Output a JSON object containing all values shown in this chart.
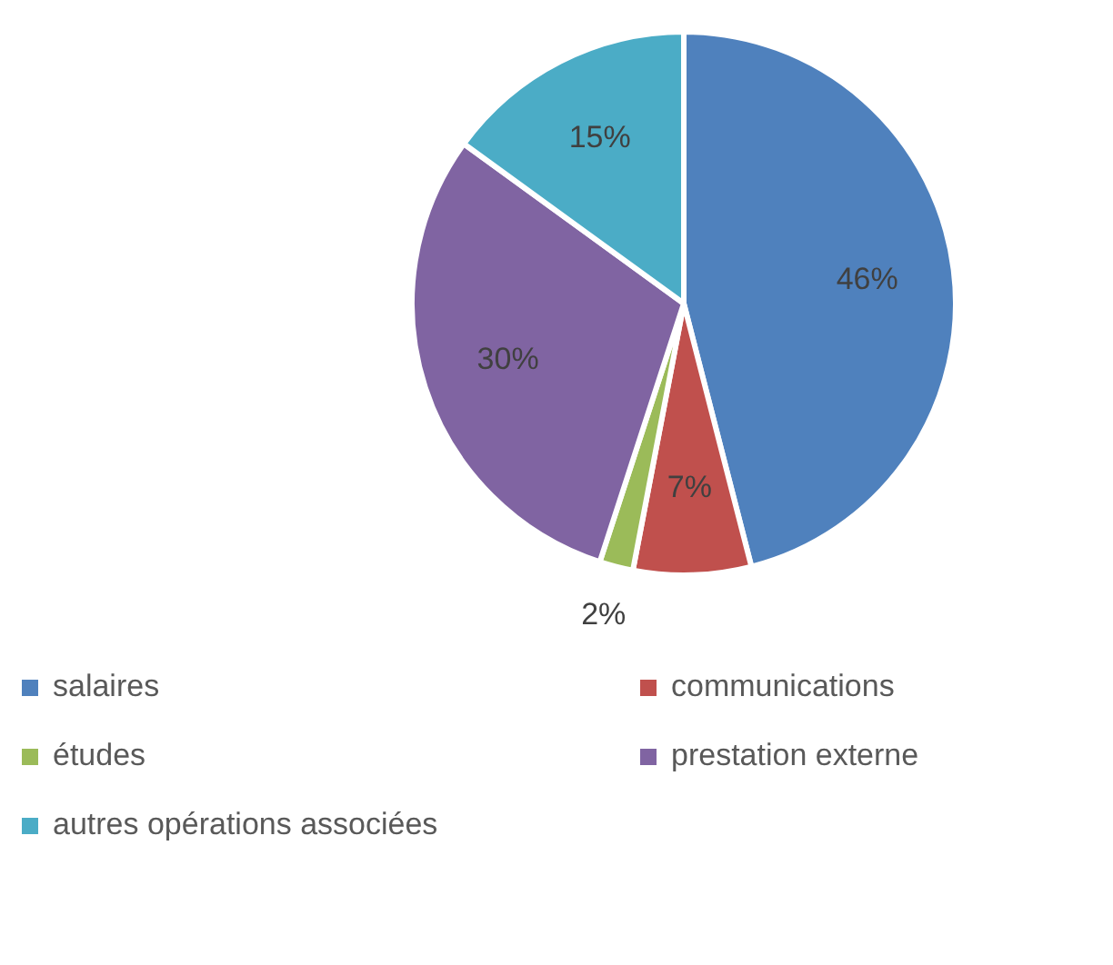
{
  "chart_data": {
    "type": "pie",
    "categories": [
      "salaires",
      "communications",
      "études",
      "prestation externe",
      "autres opérations associées"
    ],
    "values": [
      46,
      7,
      2,
      30,
      15
    ],
    "colors": [
      "#4f81bd",
      "#c0504d",
      "#9bbb59",
      "#8064a2",
      "#4bacc6"
    ],
    "value_labels": [
      "46%",
      "7%",
      "2%",
      "30%",
      "15%"
    ],
    "legend": "bottom"
  }
}
